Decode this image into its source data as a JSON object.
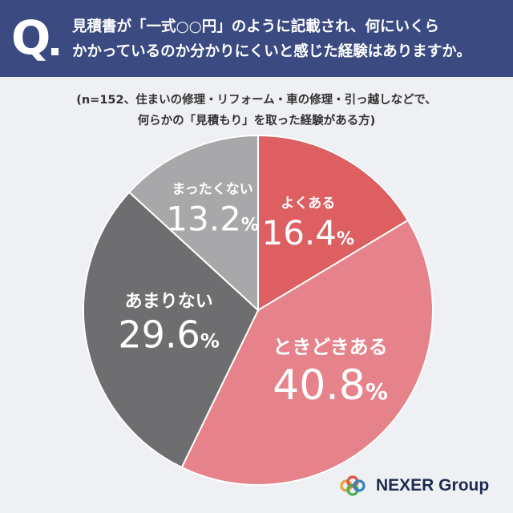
{
  "question": {
    "mark": "Q",
    "line1": "見積書が「一式○○円」のように記載され、何にいくら",
    "line2": "かかっているのか分かりにくいと感じた経験はありますか。"
  },
  "sample": {
    "line1": "(n=152、住まいの修理・リフォーム・車の修理・引っ越しなどで、",
    "line2": "何らかの「見積もり」を取った経験がある方)"
  },
  "chart_data": {
    "type": "pie",
    "unit": "%",
    "slices": [
      {
        "label": "よくある",
        "value": 16.4,
        "display": "16.4",
        "color": "#dd5f61"
      },
      {
        "label": "ときどきある",
        "value": 40.8,
        "display": "40.8",
        "color": "#e6838a"
      },
      {
        "label": "あまりない",
        "value": 29.6,
        "display": "29.6",
        "color": "#6e6e70"
      },
      {
        "label": "まったくない",
        "value": 13.2,
        "display": "13.2",
        "color": "#a8a8aa"
      }
    ]
  },
  "logo": {
    "text": "NEXER Group",
    "colors": [
      "#e9a23b",
      "#e0524d",
      "#4caf50",
      "#3b7ec0"
    ]
  }
}
